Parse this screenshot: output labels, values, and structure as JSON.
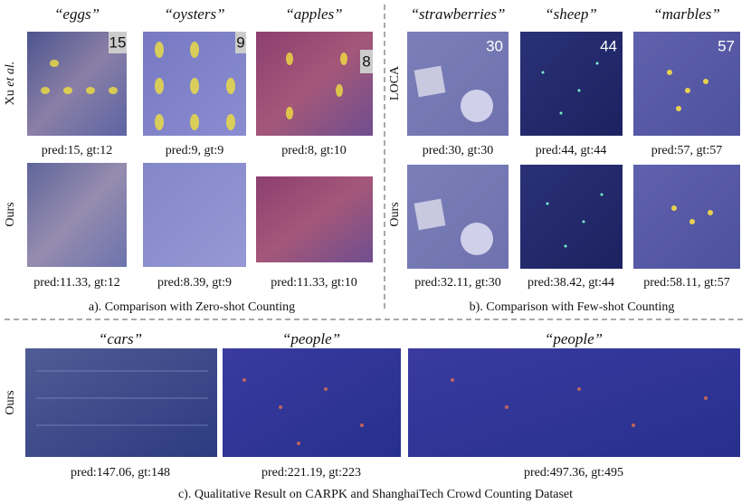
{
  "panel_a": {
    "caption": "a). Comparison with Zero-shot Counting",
    "row_labels": [
      {
        "text": "Xu",
        "italic": "et al."
      },
      {
        "text": "Ours"
      }
    ],
    "columns": [
      {
        "title": "“eggs”",
        "overlay": "15",
        "pred_row1": "pred:15, gt:12",
        "pred_row2": "pred:11.33, gt:12"
      },
      {
        "title": "“oysters”",
        "overlay": "9",
        "pred_row1": "pred:9, gt:9",
        "pred_row2": "pred:8.39, gt:9"
      },
      {
        "title": "“apples”",
        "overlay": "8",
        "pred_row1": "pred:8, gt:10",
        "pred_row2": "pred:11.33, gt:10"
      }
    ]
  },
  "panel_b": {
    "caption": "b). Comparison with Few-shot Counting",
    "row_labels": [
      "LOCA",
      "Ours"
    ],
    "columns": [
      {
        "title": "“strawberries”",
        "overlay": "30",
        "pred_row1": "pred:30, gt:30",
        "pred_row2": "pred:32.11, gt:30"
      },
      {
        "title": "“sheep”",
        "overlay": "44",
        "pred_row1": "pred:44, gt:44",
        "pred_row2": "pred:38.42, gt:44"
      },
      {
        "title": "“marbles”",
        "overlay": "57",
        "pred_row1": "pred:57, gt:57",
        "pred_row2": "pred:58.11, gt:57"
      }
    ]
  },
  "panel_c": {
    "caption": "c). Qualitative Result on CARPK and ShanghaiTech Crowd Counting Dataset",
    "row_label": "Ours",
    "columns": [
      {
        "title": "“cars”",
        "pred": "pred:147.06, gt:148"
      },
      {
        "title": "“people”",
        "pred": "pred:221.19, gt:223"
      },
      {
        "title": "“people”",
        "pred": "pred:497.36, gt:495"
      }
    ]
  }
}
